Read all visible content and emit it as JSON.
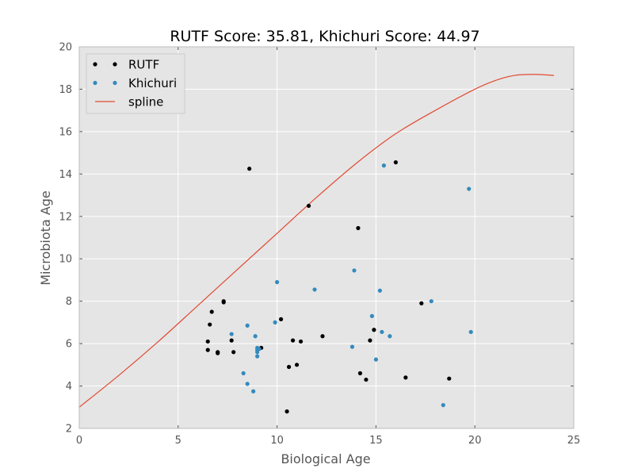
{
  "chart_data": {
    "type": "scatter",
    "title": "RUTF Score: 35.81, Khichuri Score: 44.97",
    "xlabel": "Biological Age",
    "ylabel": "Microbiota Age",
    "xlim": [
      0,
      25
    ],
    "ylim": [
      2,
      20
    ],
    "xticks": [
      0,
      5,
      10,
      15,
      20,
      25
    ],
    "yticks": [
      2,
      4,
      6,
      8,
      10,
      12,
      14,
      16,
      18,
      20
    ],
    "grid": true,
    "background": "#e5e5e5",
    "legend_position": "top-left",
    "series": [
      {
        "name": "RUTF",
        "kind": "scatter",
        "color": "#000000",
        "points": [
          [
            6.5,
            6.1
          ],
          [
            6.5,
            5.7
          ],
          [
            6.6,
            6.9
          ],
          [
            6.7,
            7.5
          ],
          [
            7.0,
            5.6
          ],
          [
            7.0,
            5.55
          ],
          [
            7.3,
            8.0
          ],
          [
            7.3,
            7.95
          ],
          [
            7.7,
            6.15
          ],
          [
            7.8,
            5.6
          ],
          [
            8.6,
            14.25
          ],
          [
            9.2,
            5.8
          ],
          [
            10.2,
            7.15
          ],
          [
            10.5,
            2.8
          ],
          [
            10.6,
            4.9
          ],
          [
            10.8,
            6.15
          ],
          [
            11.0,
            5.0
          ],
          [
            11.2,
            6.1
          ],
          [
            11.6,
            12.5
          ],
          [
            12.3,
            6.35
          ],
          [
            14.1,
            11.45
          ],
          [
            14.2,
            4.6
          ],
          [
            14.5,
            4.3
          ],
          [
            14.7,
            6.15
          ],
          [
            14.9,
            6.65
          ],
          [
            16.0,
            14.55
          ],
          [
            16.5,
            4.4
          ],
          [
            17.3,
            7.9
          ],
          [
            18.7,
            4.35
          ]
        ]
      },
      {
        "name": "Khichuri",
        "kind": "scatter",
        "color": "#348abd",
        "points": [
          [
            7.7,
            6.45
          ],
          [
            8.3,
            4.6
          ],
          [
            8.5,
            6.85
          ],
          [
            8.5,
            4.1
          ],
          [
            8.8,
            3.75
          ],
          [
            8.9,
            6.35
          ],
          [
            9.0,
            5.8
          ],
          [
            9.0,
            5.7
          ],
          [
            9.0,
            5.6
          ],
          [
            9.0,
            5.4
          ],
          [
            9.1,
            5.75
          ],
          [
            9.9,
            7.0
          ],
          [
            10.0,
            8.9
          ],
          [
            11.9,
            8.55
          ],
          [
            13.8,
            5.85
          ],
          [
            13.9,
            9.45
          ],
          [
            14.8,
            7.3
          ],
          [
            15.0,
            5.25
          ],
          [
            15.2,
            8.5
          ],
          [
            15.3,
            6.55
          ],
          [
            15.4,
            14.4
          ],
          [
            15.7,
            6.35
          ],
          [
            17.8,
            8.0
          ],
          [
            18.4,
            3.1
          ],
          [
            19.7,
            13.3
          ],
          [
            19.8,
            6.55
          ]
        ]
      },
      {
        "name": "spline",
        "kind": "line",
        "color": "#e24a33",
        "points": [
          [
            0,
            3.0
          ],
          [
            2,
            4.5
          ],
          [
            4,
            6.1
          ],
          [
            6,
            7.8
          ],
          [
            8,
            9.5
          ],
          [
            10,
            11.2
          ],
          [
            12,
            12.9
          ],
          [
            14,
            14.5
          ],
          [
            16,
            15.9
          ],
          [
            18,
            17.0
          ],
          [
            20,
            18.0
          ],
          [
            21,
            18.4
          ],
          [
            22,
            18.65
          ],
          [
            23,
            18.7
          ],
          [
            24,
            18.65
          ]
        ]
      }
    ]
  }
}
